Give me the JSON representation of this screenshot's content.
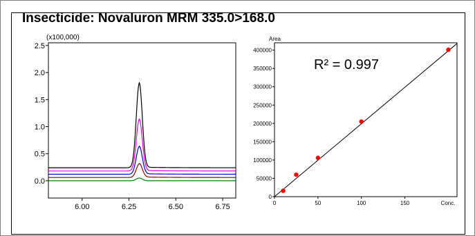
{
  "title": "Insecticide: Novaluron MRM 335.0>168.0",
  "chart_data": [
    {
      "type": "line",
      "multiplier_label": "(x100,000)",
      "xlim": [
        5.82,
        6.82
      ],
      "ylim": [
        -0.32,
        2.55
      ],
      "x_ticks": [
        "6.00",
        "6.25",
        "6.50",
        "6.75"
      ],
      "x_tick_values": [
        6.0,
        6.25,
        6.5,
        6.75
      ],
      "y_ticks": [
        "0.0",
        "0.5",
        "1.0",
        "1.5",
        "2.0",
        "2.5"
      ],
      "y_tick_values": [
        0.0,
        0.5,
        1.0,
        1.5,
        2.0,
        2.5
      ],
      "peak_center": 6.305,
      "series": [
        {
          "color": "#000000",
          "baseline": 0.24,
          "peak_height": 1.56
        },
        {
          "color": "#e600e6",
          "baseline": 0.18,
          "peak_height": 0.95
        },
        {
          "color": "#0000e0",
          "baseline": 0.12,
          "peak_height": 0.51
        },
        {
          "color": "#8b0000",
          "baseline": 0.06,
          "peak_height": 0.25
        },
        {
          "color": "#008000",
          "baseline": 0.0,
          "peak_height": 0.05
        }
      ]
    },
    {
      "type": "scatter",
      "ylabel": "Area",
      "xlabel_end": "Conc.",
      "annotation": "R² = 0.997",
      "xlim": [
        0,
        210
      ],
      "ylim": [
        0,
        420000
      ],
      "x_ticks": [
        "0",
        "50",
        "100",
        "150"
      ],
      "x_tick_values": [
        0,
        50,
        100,
        150
      ],
      "y_ticks": [
        "0",
        "50000",
        "100000",
        "150000",
        "200000",
        "250000",
        "300000",
        "350000",
        "400000"
      ],
      "y_tick_values": [
        0,
        50000,
        100000,
        150000,
        200000,
        250000,
        300000,
        350000,
        400000
      ],
      "points": [
        {
          "x": 10,
          "y": 16000
        },
        {
          "x": 25,
          "y": 60000
        },
        {
          "x": 50,
          "y": 106000
        },
        {
          "x": 100,
          "y": 205000
        },
        {
          "x": 200,
          "y": 401000
        }
      ],
      "fit_line": {
        "x": [
          0,
          210
        ],
        "y": [
          -2000,
          418000
        ]
      },
      "point_color": "#ff0000",
      "line_color": "#000000"
    }
  ]
}
